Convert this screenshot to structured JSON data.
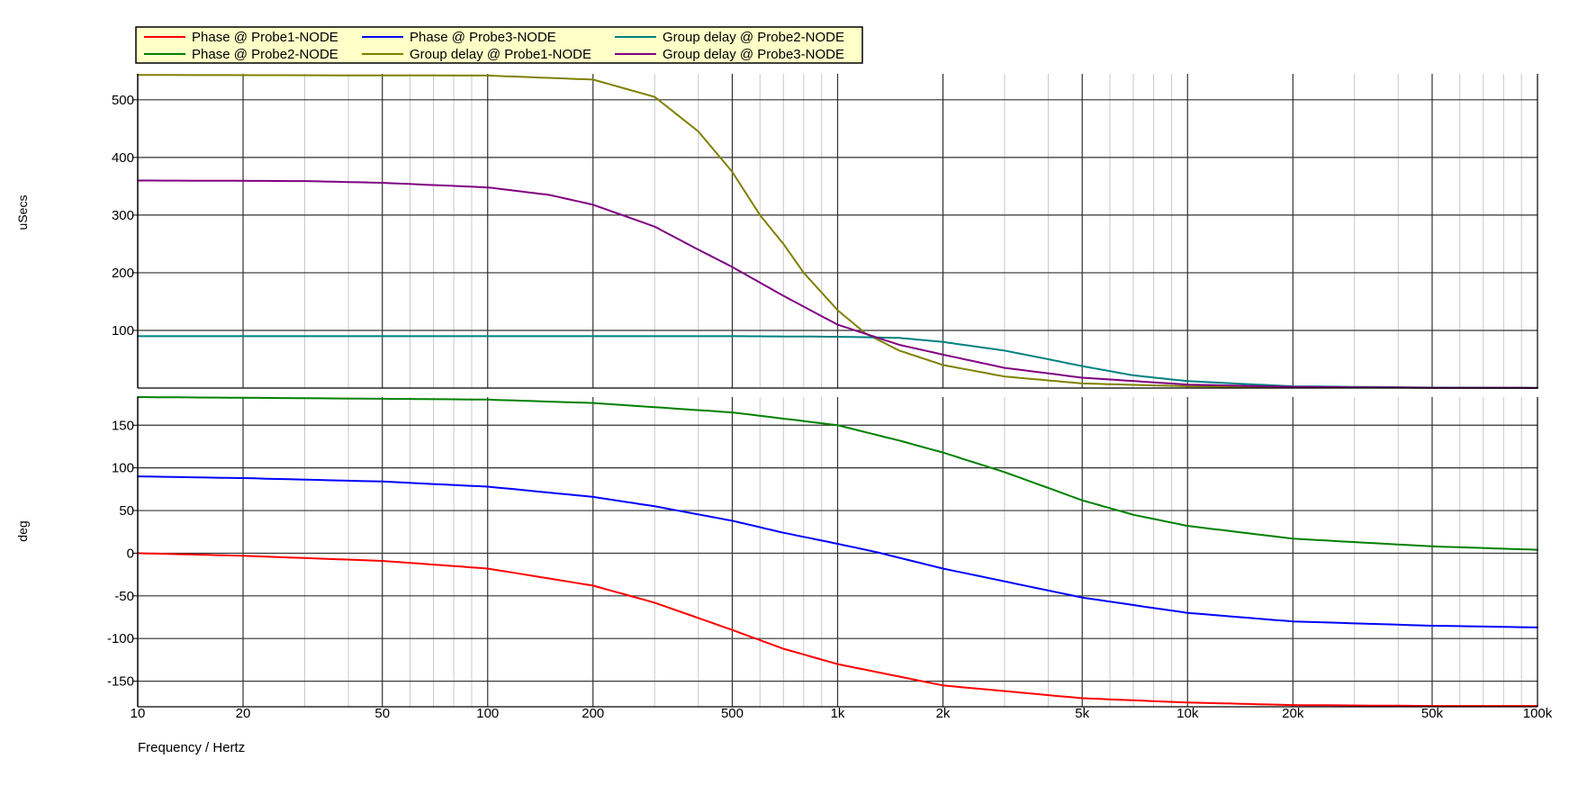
{
  "chart_data": {
    "type": "line",
    "xlabel": "Frequency / Hertz",
    "xscale": "log",
    "xlim": [
      10,
      100000
    ],
    "x_ticks": [
      {
        "v": 10,
        "label": "10"
      },
      {
        "v": 20,
        "label": "20"
      },
      {
        "v": 50,
        "label": "50"
      },
      {
        "v": 100,
        "label": "100"
      },
      {
        "v": 200,
        "label": "200"
      },
      {
        "v": 500,
        "label": "500"
      },
      {
        "v": 1000,
        "label": "1k"
      },
      {
        "v": 2000,
        "label": "2k"
      },
      {
        "v": 5000,
        "label": "5k"
      },
      {
        "v": 10000,
        "label": "10k"
      },
      {
        "v": 20000,
        "label": "20k"
      },
      {
        "v": 50000,
        "label": "50k"
      },
      {
        "v": 100000,
        "label": "100k"
      }
    ],
    "grid": true,
    "legend_position": "top-left",
    "panels": [
      {
        "id": "top",
        "ylabel": "uSecs",
        "ylim": [
          0,
          545
        ],
        "y_ticks": [
          100,
          200,
          300,
          400,
          500
        ],
        "series": [
          {
            "name": "Group delay @ Probe1-NODE",
            "color": "#808000",
            "x": [
              10,
              100,
              200,
              300,
              400,
              500,
              600,
              700,
              800,
              1000,
              1200,
              1500,
              2000,
              3000,
              5000,
              10000,
              20000,
              50000,
              100000
            ],
            "y": [
              543,
              542,
              535,
              505,
              445,
              375,
              300,
              250,
              200,
              135,
              95,
              65,
              40,
              20,
              8,
              3,
              1,
              0.5,
              0.2
            ]
          },
          {
            "name": "Group delay @ Probe2-NODE",
            "color": "#008080",
            "x": [
              10,
              100,
              500,
              1000,
              1500,
              2000,
              3000,
              4000,
              5000,
              7000,
              10000,
              20000,
              50000,
              100000
            ],
            "y": [
              90,
              90,
              90,
              89,
              87,
              80,
              65,
              50,
              38,
              22,
              12,
              3,
              0.8,
              0.2
            ]
          },
          {
            "name": "Group delay @ Probe3-NODE",
            "color": "#800080",
            "x": [
              10,
              30,
              50,
              100,
              150,
              200,
              300,
              400,
              500,
              700,
              1000,
              1500,
              2000,
              3000,
              5000,
              10000,
              20000,
              50000,
              100000
            ],
            "y": [
              360,
              359,
              356,
              348,
              335,
              318,
              280,
              240,
              210,
              160,
              110,
              75,
              58,
              35,
              18,
              6,
              2,
              0.5,
              0.2
            ]
          }
        ]
      },
      {
        "id": "bottom",
        "ylabel": "deg",
        "ylim": [
          -180,
          183
        ],
        "y_ticks": [
          -150,
          -100,
          -50,
          0,
          50,
          100,
          150
        ],
        "series": [
          {
            "name": "Phase @ Probe1-NODE",
            "color": "#ff0000",
            "x": [
              10,
              20,
              50,
              100,
              200,
              300,
              500,
              700,
              1000,
              2000,
              5000,
              10000,
              20000,
              50000,
              100000
            ],
            "y": [
              0,
              -3,
              -9,
              -18,
              -38,
              -58,
              -90,
              -112,
              -130,
              -155,
              -170,
              -175,
              -178,
              -179,
              -179
            ]
          },
          {
            "name": "Phase @ Probe2-NODE",
            "color": "#008000",
            "x": [
              10,
              50,
              100,
              200,
              500,
              1000,
              1500,
              2000,
              3000,
              5000,
              7000,
              10000,
              20000,
              50000,
              100000
            ],
            "y": [
              183,
              181,
              180,
              176,
              165,
              150,
              132,
              118,
              95,
              62,
              45,
              32,
              17,
              8,
              4
            ]
          },
          {
            "name": "Phase @ Probe3-NODE",
            "color": "#0000ff",
            "x": [
              10,
              20,
              50,
              100,
              200,
              300,
              500,
              700,
              1000,
              1300,
              2000,
              5000,
              10000,
              20000,
              50000,
              100000
            ],
            "y": [
              90,
              88,
              84,
              78,
              66,
              55,
              38,
              24,
              11,
              1,
              -18,
              -52,
              -70,
              -80,
              -85,
              -87
            ]
          }
        ]
      }
    ],
    "legend": [
      [
        "Phase @ Probe1-NODE",
        "Phase @ Probe3-NODE",
        "Group delay @ Probe2-NODE"
      ],
      [
        "Phase @ Probe2-NODE",
        "Group delay @ Probe1-NODE",
        "Group delay @ Probe3-NODE"
      ]
    ]
  }
}
